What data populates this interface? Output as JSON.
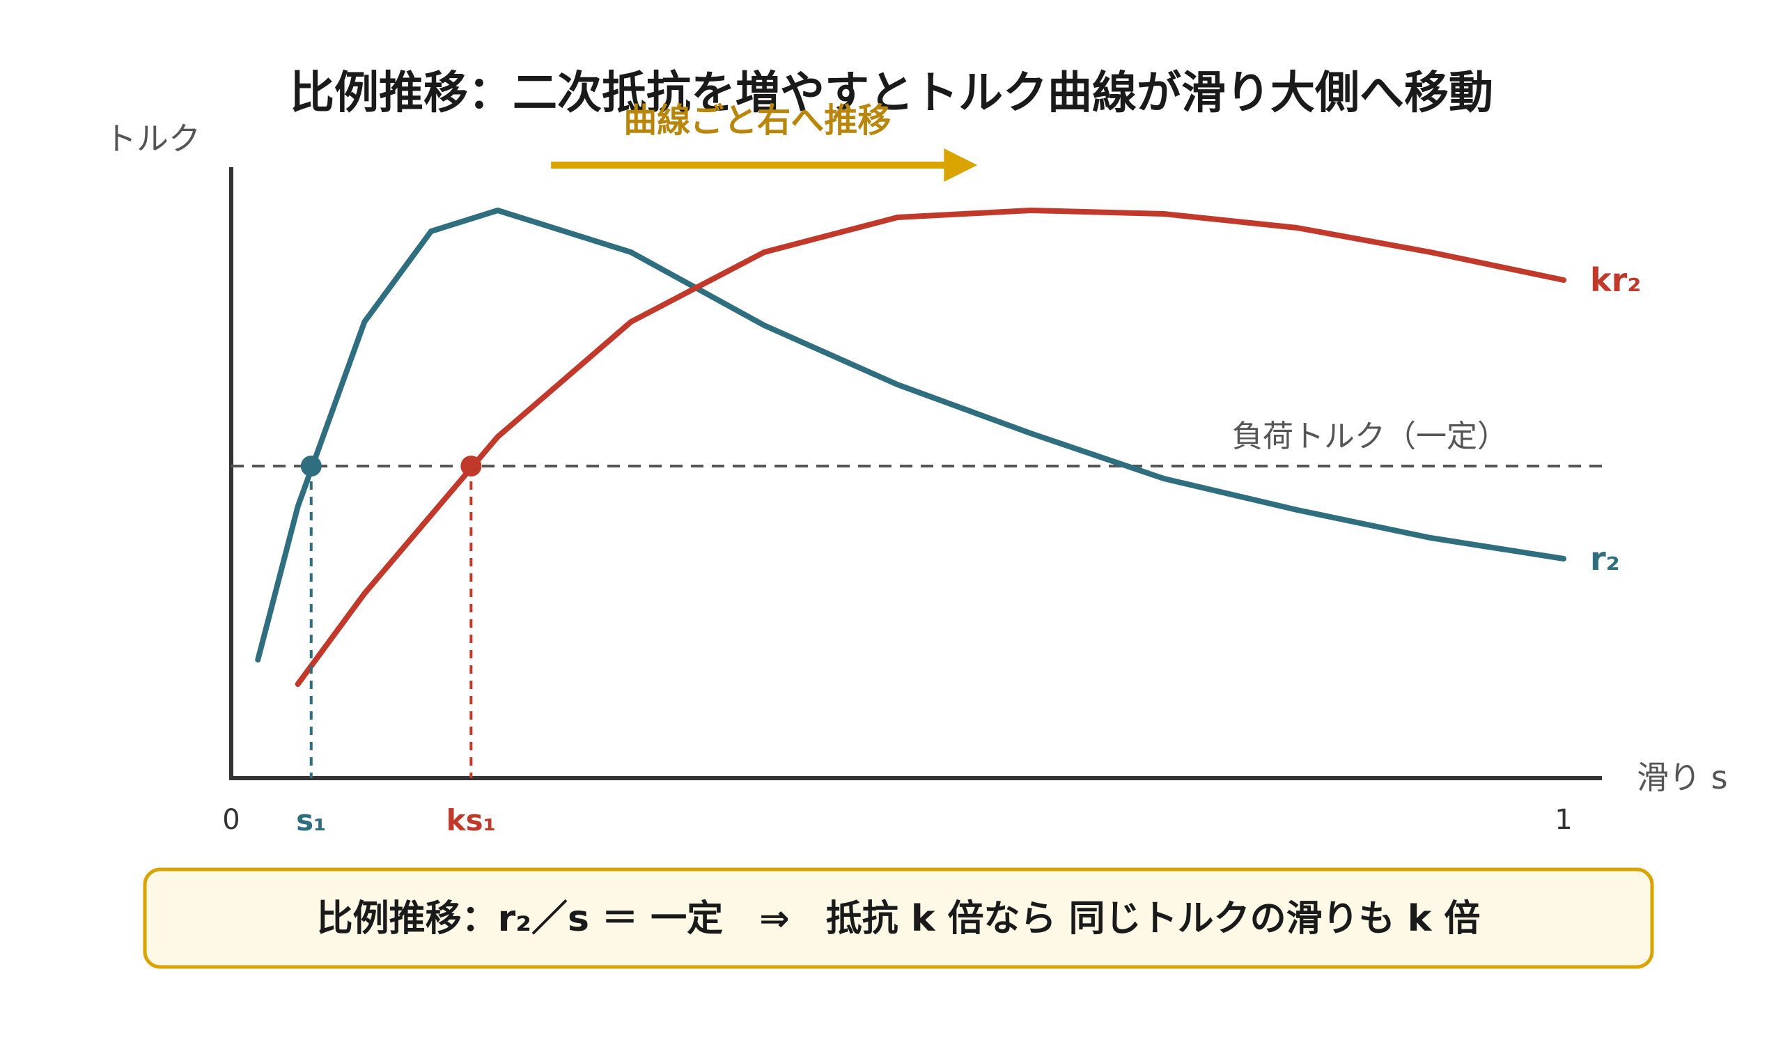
{
  "chart_data": {
    "type": "line",
    "title": "比例推移：二次抵抗を増やすとトルク曲線が滑り大側へ移動",
    "ylabel": "トルク",
    "xlabel": "滑り s",
    "xlim": [
      0,
      1
    ],
    "ylim": [
      0,
      1
    ],
    "x_ticks": [
      {
        "value": 0,
        "label": "0"
      },
      {
        "value": 1,
        "label": "1"
      }
    ],
    "series": [
      {
        "name": "r₂",
        "color": "#2e6e7e",
        "x": [
          0.02,
          0.05,
          0.1,
          0.15,
          0.2,
          0.3,
          0.4,
          0.5,
          0.6,
          0.7,
          0.8,
          0.9,
          1.0
        ],
        "y": [
          0.17,
          0.39,
          0.655,
          0.785,
          0.815,
          0.755,
          0.65,
          0.565,
          0.495,
          0.43,
          0.385,
          0.345,
          0.315
        ]
      },
      {
        "name": "kr₂",
        "color": "#c0392b",
        "x": [
          0.05,
          0.1,
          0.2,
          0.3,
          0.4,
          0.5,
          0.6,
          0.7,
          0.8,
          0.9,
          1.0
        ],
        "y": [
          0.135,
          0.265,
          0.49,
          0.655,
          0.755,
          0.805,
          0.815,
          0.81,
          0.79,
          0.755,
          0.715
        ]
      }
    ],
    "load_line": {
      "y": 0.448,
      "label": "負荷トルク（一定）",
      "color": "#555555"
    },
    "markers": [
      {
        "x": 0.06,
        "y": 0.448,
        "label": "s₁",
        "color": "#2e6e7e"
      },
      {
        "x": 0.18,
        "y": 0.448,
        "label": "ks₁",
        "color": "#c0392b"
      }
    ],
    "annotation_arrow": {
      "label": "曲線ごと右へ推移",
      "color": "#d9a400",
      "x_from": 0.24,
      "x_to": 0.56,
      "y": 0.88
    },
    "formula_box": {
      "text": "比例推移：r₂／s ＝ 一定　⇒　抵抗 k 倍なら 同じトルクの滑りも k 倍",
      "fill": "#fdf9e6",
      "stroke": "#d9a400"
    }
  }
}
